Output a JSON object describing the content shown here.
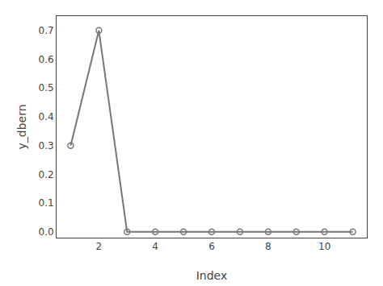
{
  "chart_data": {
    "type": "line",
    "x": [
      1,
      2,
      3,
      4,
      5,
      6,
      7,
      8,
      9,
      10,
      11
    ],
    "values": [
      0.3,
      0.7,
      0.0,
      0.0,
      0.0,
      0.0,
      0.0,
      0.0,
      0.0,
      0.0,
      0.0
    ],
    "xlabel": "Index",
    "ylabel": "y_dbern",
    "xlim": [
      0.5,
      11.5
    ],
    "ylim": [
      -0.02,
      0.75
    ],
    "xticks": [
      2,
      4,
      6,
      8,
      10
    ],
    "yticks": [
      {
        "value": 0,
        "label": "0.0"
      },
      0.1,
      0.2,
      0.3,
      0.4,
      0.5,
      0.6,
      0.7
    ],
    "color": "#777777",
    "marker": "circle-open",
    "grid": false
  }
}
